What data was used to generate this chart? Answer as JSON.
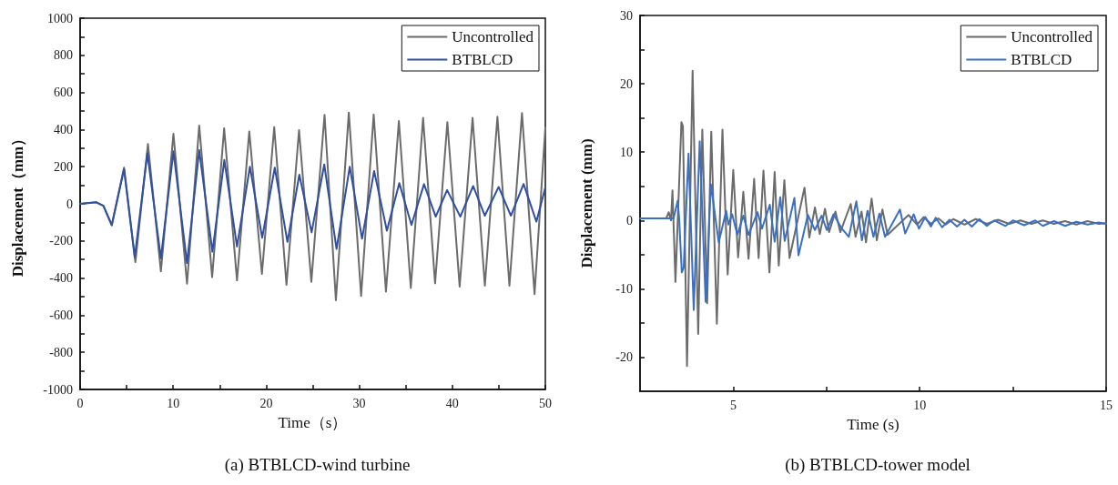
{
  "chart_data": [
    {
      "type": "line",
      "title": "(a) BTBLCD-wind turbine",
      "xlabel": "Time（s）",
      "ylabel": "Displacement（mm）",
      "xlim": [
        0,
        50
      ],
      "ylim": [
        -1000,
        1000
      ],
      "xticks": [
        0,
        {
          "value": 5,
          "label": null
        },
        10,
        {
          "value": 15,
          "label": null
        },
        20,
        {
          "value": 25,
          "label": null
        },
        30,
        {
          "value": 35,
          "label": null
        },
        40,
        {
          "value": 45,
          "label": null
        },
        50
      ],
      "yticks": [
        -1000,
        {
          "value": -900,
          "label": null
        },
        -800,
        {
          "value": -700,
          "label": null
        },
        -600,
        {
          "value": -500,
          "label": null
        },
        -400,
        {
          "value": -300,
          "label": null
        },
        -200,
        {
          "value": -100,
          "label": null
        },
        0,
        {
          "value": 100,
          "label": null
        },
        200,
        {
          "value": 300,
          "label": null
        },
        400,
        {
          "value": 500,
          "label": null
        },
        600,
        {
          "value": 700,
          "label": null
        },
        800,
        {
          "value": 900,
          "label": null
        },
        1000
      ],
      "grid": false,
      "legend": "top right",
      "line_style": "solid",
      "marker": "none",
      "series": [
        {
          "name": "Uncontrolled",
          "color": "#6b6b6b",
          "x": [
            0,
            1.75,
            2.5,
            3.4,
            4.72,
            5.94,
            7.29,
            8.68,
            10.03,
            11.49,
            12.8,
            14.19,
            15.48,
            16.86,
            18.18,
            19.54,
            20.86,
            22.18,
            23.53,
            24.85,
            26.27,
            27.49,
            28.88,
            30.2,
            31.55,
            32.87,
            34.26,
            35.54,
            36.86,
            38.15,
            39.47,
            40.79,
            42.18,
            43.5,
            44.85,
            46.14,
            47.49,
            48.84,
            50
          ],
          "values": [
            0,
            8,
            -10,
            -115,
            195,
            -314,
            322,
            -364,
            377,
            -430,
            421,
            -395,
            407,
            -412,
            390,
            -377,
            413,
            -436,
            397,
            -420,
            479,
            -519,
            492,
            -496,
            481,
            -473,
            446,
            -453,
            463,
            -428,
            440,
            -446,
            463,
            -441,
            469,
            -441,
            489,
            -486,
            410
          ]
        },
        {
          "name": "BTBLCD",
          "color": "#2f4fa3",
          "x": [
            0,
            1.75,
            2.5,
            3.4,
            4.72,
            5.87,
            7.23,
            8.68,
            10.03,
            11.49,
            12.8,
            14.22,
            15.5,
            16.86,
            18.25,
            19.57,
            20.92,
            22.28,
            23.56,
            24.88,
            26.24,
            27.56,
            28.98,
            30.3,
            31.6,
            32.97,
            34.3,
            35.61,
            36.96,
            38.22,
            39.44,
            40.86,
            42.24,
            43.5,
            44.98,
            46.3,
            47.66,
            49.04,
            50
          ],
          "values": [
            0,
            8,
            -10,
            -115,
            187,
            -288,
            273,
            -293,
            283,
            -319,
            289,
            -258,
            236,
            -230,
            200,
            -183,
            195,
            -205,
            157,
            -154,
            212,
            -243,
            200,
            -188,
            177,
            -145,
            112,
            -114,
            106,
            -69,
            74,
            -69,
            96,
            -64,
            91,
            -64,
            107,
            -96,
            88
          ]
        }
      ]
    },
    {
      "type": "line",
      "title": "(b) BTBLCD-tower model",
      "xlabel": "Time (s)",
      "ylabel": "Displacement (mm)",
      "xlim": [
        2.5,
        15
      ],
      "ylim": [
        -25,
        30
      ],
      "xticks": [
        5,
        {
          "value": 7.5,
          "label": null
        },
        10,
        {
          "value": 12.5,
          "label": null
        },
        15
      ],
      "yticks": [
        -20,
        {
          "value": -15,
          "label": null
        },
        -10,
        {
          "value": -5,
          "label": null
        },
        0,
        {
          "value": 5,
          "label": null
        },
        10,
        {
          "value": 15,
          "label": null
        },
        20,
        {
          "value": 25,
          "label": null
        },
        30
      ],
      "grid": false,
      "legend": "top right",
      "line_style": "solid",
      "marker": "none",
      "series": [
        {
          "name": "Uncontrolled",
          "color": "#6b6b6b",
          "x": [
            2.5,
            3.2,
            3.27,
            3.33,
            3.37,
            3.45,
            3.61,
            3.65,
            3.76,
            3.91,
            4.06,
            4.17,
            4.3,
            4.41,
            4.56,
            4.71,
            4.85,
            5.0,
            5.13,
            5.27,
            5.41,
            5.56,
            5.68,
            5.81,
            5.97,
            6.11,
            6.22,
            6.37,
            6.51,
            6.91,
            7.04,
            7.19,
            7.32,
            7.46,
            7.57,
            7.74,
            7.87,
            8.15,
            8.28,
            8.44,
            8.56,
            8.71,
            8.85,
            9.0,
            9.14,
            9.7,
            9.93,
            10.11,
            10.3,
            10.5,
            10.7,
            10.9,
            11.2,
            11.5,
            11.8,
            12.1,
            12.4,
            12.7,
            13.0,
            13.3,
            13.6,
            13.9,
            14.2,
            14.5,
            14.8,
            15
          ],
          "values": [
            0.3,
            0.3,
            1.2,
            0,
            4.4,
            -9,
            14.4,
            13.8,
            -21.3,
            21.9,
            -16.6,
            13.3,
            -12.1,
            13,
            -15.1,
            13.3,
            -7.9,
            7.4,
            -5.4,
            4.2,
            -5.6,
            6.1,
            -5.5,
            7.3,
            -7.6,
            7.1,
            -6.6,
            5.9,
            -5.5,
            4.8,
            -2.5,
            1.9,
            -2,
            1.7,
            -1.7,
            1.3,
            -1.7,
            2.4,
            -2.4,
            1.3,
            -3.2,
            3.2,
            -2.9,
            1.6,
            -2.1,
            0.8,
            -0.6,
            0.5,
            -0.5,
            0.3,
            -0.6,
            0.2,
            -0.6,
            0.2,
            -0.5,
            0.1,
            -0.5,
            0,
            -0.5,
            0,
            -0.5,
            -0.1,
            -0.6,
            -0.1,
            -0.5,
            -0.4
          ]
        },
        {
          "name": "BTBLCD",
          "color": "#3a70c4",
          "x": [
            2.5,
            3.35,
            3.4,
            3.51,
            3.55,
            3.62,
            3.67,
            3.8,
            3.94,
            4.1,
            4.26,
            4.4,
            4.61,
            4.81,
            4.87,
            4.97,
            5.11,
            5.27,
            5.41,
            5.65,
            5.77,
            5.98,
            6.11,
            6.26,
            6.38,
            6.64,
            6.75,
            7.0,
            7.19,
            7.37,
            7.51,
            7.69,
            7.9,
            8.1,
            8.3,
            8.45,
            8.6,
            8.76,
            8.92,
            9.07,
            9.47,
            9.61,
            9.84,
            9.98,
            10.15,
            10.3,
            10.43,
            10.6,
            10.8,
            11.0,
            11.2,
            11.4,
            11.6,
            11.8,
            12.0,
            12.3,
            12.5,
            12.8,
            13.1,
            13.3,
            13.6,
            13.9,
            14.2,
            14.5,
            14.8,
            15
          ],
          "values": [
            0.3,
            0.3,
            0.3,
            2.9,
            0.2,
            -7.6,
            -6.9,
            9.8,
            -13.1,
            11.6,
            -11.9,
            5.3,
            -3.2,
            1.4,
            -0.6,
            0.9,
            -2.1,
            0.7,
            -2.1,
            1.2,
            -1.2,
            2.3,
            -3.1,
            3.4,
            -3,
            3.3,
            -5.1,
            0.8,
            -1.4,
            0.7,
            -1.4,
            0.9,
            -1.1,
            -2.4,
            2.8,
            -2.9,
            1.4,
            -2.4,
            1,
            -2.4,
            1.6,
            -1.9,
            0.9,
            -1.2,
            0.5,
            -0.9,
            0.4,
            -1,
            0.1,
            -0.9,
            0.1,
            -0.9,
            0.2,
            -0.8,
            0,
            -0.8,
            0,
            -0.7,
            0,
            -0.8,
            -0.1,
            -0.8,
            -0.2,
            -0.6,
            -0.3,
            -0.5
          ]
        }
      ]
    }
  ]
}
